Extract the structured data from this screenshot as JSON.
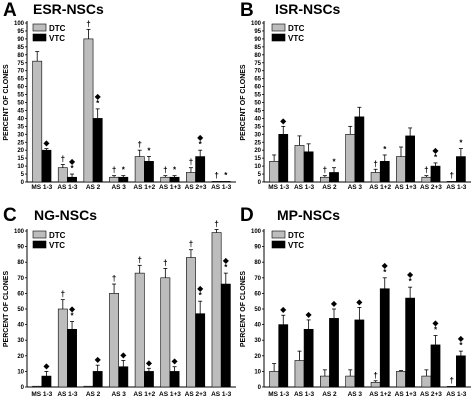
{
  "chart_data": [
    {
      "type": "bar",
      "panel": "A",
      "title": "ESR-NSCs",
      "ylabel": "PERCENT OF CLONES",
      "ylim": [
        0,
        100
      ],
      "yticks": [
        0,
        5,
        10,
        15,
        20,
        25,
        30,
        35,
        40,
        45,
        50,
        55,
        60,
        65,
        70,
        75,
        80,
        85,
        90,
        95,
        100
      ],
      "categories": [
        "MS 1-3",
        "AS 1-3",
        "AS 2",
        "AS 3",
        "AS 1+2",
        "AS 1+3",
        "AS 2+3",
        "AS 1-3"
      ],
      "legend": [
        "DTC",
        "VTC"
      ],
      "series": [
        {
          "name": "DTC",
          "color": "#bdbdbd",
          "values": [
            76,
            9,
            90,
            3,
            16,
            3,
            6,
            0.4
          ],
          "errors": [
            6,
            2,
            6,
            1,
            4,
            1,
            3,
            0.2
          ],
          "marks": [
            "",
            "†",
            "†",
            "†",
            "†",
            "†",
            "†",
            "†"
          ]
        },
        {
          "name": "VTC",
          "color": "#000000",
          "values": [
            20,
            3,
            40,
            3,
            13,
            3,
            16,
            0.3
          ],
          "errors": [
            1,
            2,
            6,
            1,
            3,
            1,
            4,
            0.2
          ],
          "marks": [
            "◆",
            "◆*",
            "◆*",
            "*",
            "*",
            "*",
            "◆*",
            "*"
          ]
        }
      ]
    },
    {
      "type": "bar",
      "panel": "B",
      "title": "ISR-NSCs",
      "ylabel": "PERCENT OF CLONES",
      "ylim": [
        0,
        100
      ],
      "yticks": [
        0,
        5,
        10,
        15,
        20,
        25,
        30,
        35,
        40,
        45,
        50,
        55,
        60,
        65,
        70,
        75,
        80,
        85,
        90,
        95,
        100
      ],
      "categories": [
        "MS 1-3",
        "AS 1-3",
        "AS 2",
        "AS 3",
        "AS 1+2",
        "AS 1+3",
        "AS 2+3",
        "AS 1-3"
      ],
      "legend": [
        "DTC",
        "VTC"
      ],
      "series": [
        {
          "name": "DTC",
          "color": "#bdbdbd",
          "values": [
            13,
            23,
            3,
            30,
            6,
            16,
            3,
            0.3
          ],
          "errors": [
            4,
            6,
            1,
            5,
            2,
            6,
            1,
            0.2
          ],
          "marks": [
            "",
            "",
            "†",
            "",
            "†",
            "",
            "†",
            "†"
          ]
        },
        {
          "name": "VTC",
          "color": "#000000",
          "values": [
            30,
            19,
            6,
            41,
            13,
            29,
            10,
            16
          ],
          "errors": [
            5,
            5,
            3,
            6,
            4,
            5,
            2,
            5
          ],
          "marks": [
            "◆",
            "",
            "*",
            "",
            "*",
            "",
            "◆*",
            "*"
          ]
        }
      ]
    },
    {
      "type": "bar",
      "panel": "C",
      "title": "NG-NSCs",
      "ylabel": "PERCENT OF CLONES",
      "ylim": [
        0,
        100
      ],
      "yticks": [
        0,
        10,
        20,
        30,
        40,
        50,
        60,
        70,
        80,
        90,
        100
      ],
      "categories": [
        "MS 1-3",
        "AS 1-3",
        "AS 2",
        "AS 3",
        "AS 1+2",
        "AS 1+3",
        "AS 2+3",
        "AS 1-3"
      ],
      "legend": [
        "DTC",
        "VTC"
      ],
      "series": [
        {
          "name": "DTC",
          "color": "#bdbdbd",
          "values": [
            0.5,
            50,
            0.5,
            60,
            73,
            70,
            83,
            99
          ],
          "errors": [
            0.2,
            6,
            0.2,
            6,
            5,
            6,
            5,
            2
          ],
          "marks": [
            "",
            "†",
            "",
            "†",
            "†",
            "†",
            "†",
            "†"
          ]
        },
        {
          "name": "VTC",
          "color": "#000000",
          "values": [
            7,
            37,
            10,
            13,
            10,
            10,
            47,
            66
          ],
          "errors": [
            3,
            5,
            4,
            4,
            2,
            3,
            8,
            7
          ],
          "marks": [
            "◆",
            "◆*",
            "◆",
            "◆",
            "◆",
            "◆",
            "◆*",
            "◆*"
          ]
        }
      ]
    },
    {
      "type": "bar",
      "panel": "D",
      "title": "MP-NSCs",
      "ylabel": "PERCENT OF CLONES",
      "ylim": [
        0,
        100
      ],
      "yticks": [
        0,
        10,
        20,
        30,
        40,
        50,
        60,
        70,
        80,
        90,
        100
      ],
      "categories": [
        "MS 1-3",
        "AS 1-3",
        "AS 2",
        "AS 3",
        "AS 1+2",
        "AS 1+3",
        "AS 2+3",
        "AS 1-3"
      ],
      "legend": [
        "DTC",
        "VTC"
      ],
      "series": [
        {
          "name": "DTC",
          "color": "#bdbdbd",
          "values": [
            10,
            17,
            7,
            7,
            3,
            10,
            7,
            0.3
          ],
          "errors": [
            5,
            6,
            4,
            4,
            1,
            0.5,
            4,
            0.2
          ],
          "marks": [
            "",
            "",
            "",
            "",
            "†",
            "",
            "",
            "†"
          ]
        },
        {
          "name": "VTC",
          "color": "#000000",
          "values": [
            40,
            37,
            44,
            43,
            63,
            57,
            27,
            20
          ],
          "errors": [
            6,
            6,
            6,
            8,
            7,
            7,
            6,
            3
          ],
          "marks": [
            "◆",
            "◆",
            "◆",
            "◆",
            "◆*",
            "◆*",
            "◆*",
            "◆*"
          ]
        }
      ]
    }
  ]
}
